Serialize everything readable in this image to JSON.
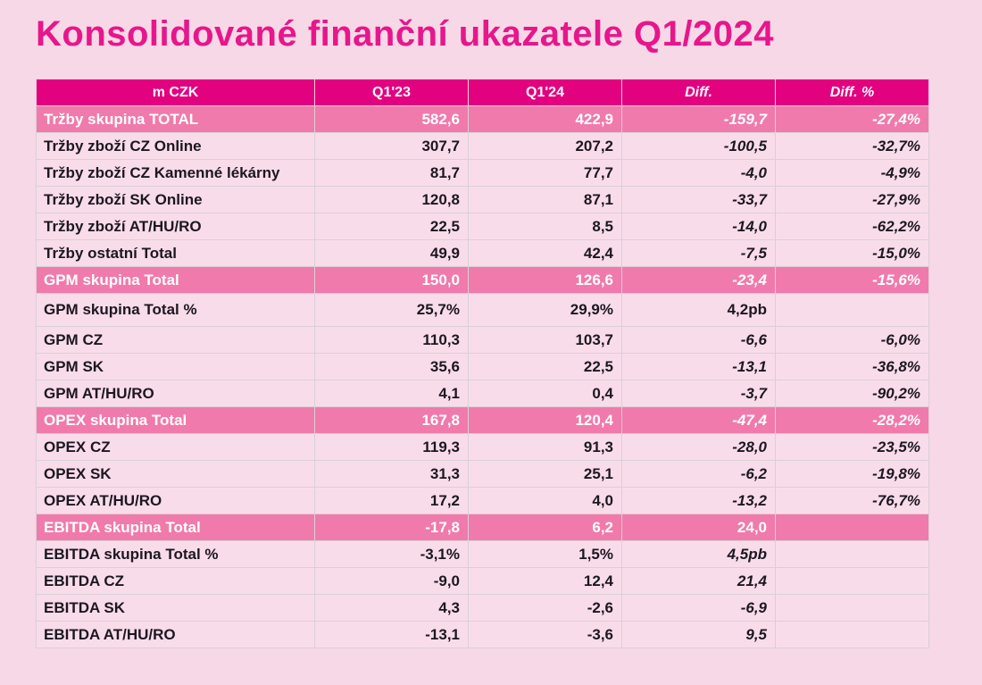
{
  "title": "Konsolidované finanční ukazatele Q1/2024",
  "colors": {
    "page_bg": "#f7d8e7",
    "title_text": "#e7168b",
    "header_bg": "#e2017f",
    "header_text": "#ffffff",
    "highlight_bg": "#f07aab",
    "highlight_text": "#ffffff",
    "row_bg": "#f9dcea",
    "row_text": "#1c1722",
    "grid_line": "#d9d0d7"
  },
  "table": {
    "columns": [
      {
        "label": "m CZK",
        "italic": false
      },
      {
        "label": "Q1'23",
        "italic": false
      },
      {
        "label": "Q1'24",
        "italic": false
      },
      {
        "label": "Diff.",
        "italic": true
      },
      {
        "label": "Diff. %",
        "italic": true
      }
    ],
    "rows": [
      {
        "label": "Tržby skupina TOTAL",
        "q123": "582,6",
        "q124": "422,9",
        "diff": "-159,7",
        "diffpct": "-27,4%",
        "highlight": true
      },
      {
        "label": "Tržby zboží CZ Online",
        "q123": "307,7",
        "q124": "207,2",
        "diff": "-100,5",
        "diffpct": "-32,7%"
      },
      {
        "label": "Tržby zboží CZ Kamenné lékárny",
        "q123": "81,7",
        "q124": "77,7",
        "diff": "-4,0",
        "diffpct": "-4,9%"
      },
      {
        "label": "Tržby zboží SK Online",
        "q123": "120,8",
        "q124": "87,1",
        "diff": "-33,7",
        "diffpct": "-27,9%"
      },
      {
        "label": "Tržby zboží AT/HU/RO",
        "q123": "22,5",
        "q124": "8,5",
        "diff": "-14,0",
        "diffpct": "-62,2%"
      },
      {
        "label": "Tržby ostatní Total",
        "q123": "49,9",
        "q124": "42,4",
        "diff": "-7,5",
        "diffpct": "-15,0%"
      },
      {
        "label": "GPM skupina Total",
        "q123": "150,0",
        "q124": "126,6",
        "diff": "-23,4",
        "diffpct": "-15,6%",
        "highlight": true
      },
      {
        "label": "GPM skupina Total %",
        "q123": "25,7%",
        "q124": "29,9%",
        "diff": "4,2pb",
        "diffpct": "",
        "diff_italic": false,
        "tall": true
      },
      {
        "label": "GPM CZ",
        "q123": "110,3",
        "q124": "103,7",
        "diff": "-6,6",
        "diffpct": "-6,0%"
      },
      {
        "label": "GPM SK",
        "q123": "35,6",
        "q124": "22,5",
        "diff": "-13,1",
        "diffpct": "-36,8%"
      },
      {
        "label": "GPM AT/HU/RO",
        "q123": "4,1",
        "q124": "0,4",
        "diff": "-3,7",
        "diffpct": "-90,2%"
      },
      {
        "label": "OPEX skupina Total",
        "q123": "167,8",
        "q124": "120,4",
        "diff": "-47,4",
        "diffpct": "-28,2%",
        "highlight": true
      },
      {
        "label": "OPEX CZ",
        "q123": "119,3",
        "q124": "91,3",
        "diff": "-28,0",
        "diffpct": "-23,5%"
      },
      {
        "label": "OPEX SK",
        "q123": "31,3",
        "q124": "25,1",
        "diff": "-6,2",
        "diffpct": "-19,8%"
      },
      {
        "label": "OPEX AT/HU/RO",
        "q123": "17,2",
        "q124": "4,0",
        "diff": "-13,2",
        "diffpct": "-76,7%"
      },
      {
        "label": "EBITDA skupina Total",
        "q123": "-17,8",
        "q124": "6,2",
        "diff": "24,0",
        "diffpct": "",
        "diff_italic": false,
        "highlight": true
      },
      {
        "label": "EBITDA skupina Total %",
        "q123": "-3,1%",
        "q124": "1,5%",
        "diff": "4,5pb",
        "diffpct": ""
      },
      {
        "label": "EBITDA CZ",
        "q123": "-9,0",
        "q124": "12,4",
        "diff": "21,4",
        "diffpct": ""
      },
      {
        "label": "EBITDA SK",
        "q123": "4,3",
        "q124": "-2,6",
        "diff": "-6,9",
        "diffpct": ""
      },
      {
        "label": "EBITDA AT/HU/RO",
        "q123": "-13,1",
        "q124": "-3,6",
        "diff": "9,5",
        "diffpct": ""
      }
    ]
  }
}
